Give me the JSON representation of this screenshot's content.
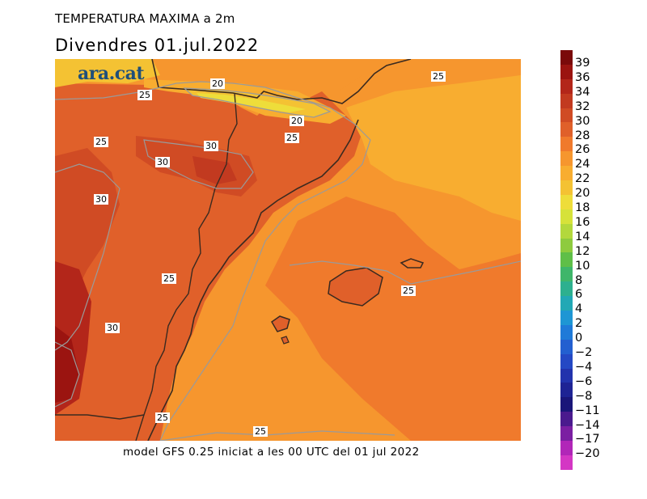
{
  "title": "TEMPERATURA MAXIMA a 2m",
  "subtitle": "Divendres  01.jul.2022",
  "brand": "ara.cat",
  "footer": "model GFS 0.25 iniciat a les 00 UTC del 01 jul 2022",
  "contour_labels": [
    "20",
    "20",
    "25",
    "25",
    "25",
    "25",
    "25",
    "25",
    "25",
    "30",
    "30",
    "30",
    "30"
  ],
  "colorbar": [
    {
      "label": "39",
      "color": "#7a0a0a"
    },
    {
      "label": "36",
      "color": "#9b1410"
    },
    {
      "label": "34",
      "color": "#b3261a"
    },
    {
      "label": "32",
      "color": "#c23a20"
    },
    {
      "label": "30",
      "color": "#d04b24"
    },
    {
      "label": "28",
      "color": "#e0602a"
    },
    {
      "label": "26",
      "color": "#f07a2c"
    },
    {
      "label": "24",
      "color": "#f6962e"
    },
    {
      "label": "22",
      "color": "#f8ad30"
    },
    {
      "label": "20",
      "color": "#f4c233"
    },
    {
      "label": "18",
      "color": "#eedd3a"
    },
    {
      "label": "16",
      "color": "#d6e23a"
    },
    {
      "label": "14",
      "color": "#b3d83c"
    },
    {
      "label": "12",
      "color": "#8ecb3e"
    },
    {
      "label": "10",
      "color": "#5fbf48"
    },
    {
      "label": "8",
      "color": "#3fb66a"
    },
    {
      "label": "6",
      "color": "#2db08f"
    },
    {
      "label": "4",
      "color": "#22a8b5"
    },
    {
      "label": "2",
      "color": "#1e96d4"
    },
    {
      "label": "0",
      "color": "#1f7ad8"
    },
    {
      "label": "−2",
      "color": "#235fd0"
    },
    {
      "label": "−4",
      "color": "#2448c4"
    },
    {
      "label": "−6",
      "color": "#2233ad"
    },
    {
      "label": "−8",
      "color": "#1e2394"
    },
    {
      "label": "−11",
      "color": "#1a1679"
    },
    {
      "label": "−14",
      "color": "#4a1a8e"
    },
    {
      "label": "−17",
      "color": "#7b1fa2"
    },
    {
      "label": "−20",
      "color": "#b126b8"
    },
    {
      "label": "",
      "color": "#d436c4"
    }
  ]
}
